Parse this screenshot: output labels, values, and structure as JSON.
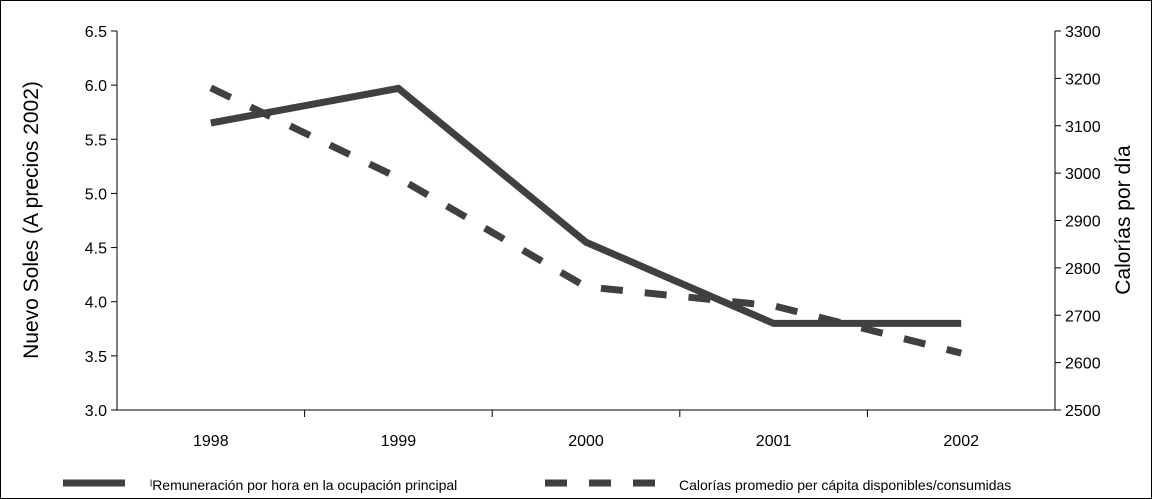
{
  "chart_data": {
    "type": "line",
    "categories": [
      "1998",
      "1999",
      "2000",
      "2001",
      "2002"
    ],
    "ylabel": "Nuevo Soles (A precios 2002)",
    "y2label": "Calorías por día",
    "ylim": [
      3.0,
      6.5
    ],
    "y2lim": [
      2500,
      3300
    ],
    "yticks": [
      "3.0",
      "3.5",
      "4.0",
      "4.5",
      "5.0",
      "5.5",
      "6.0",
      "6.5"
    ],
    "y2ticks": [
      "2500",
      "2600",
      "2700",
      "2800",
      "2900",
      "3000",
      "3100",
      "3200",
      "3300"
    ],
    "series": [
      {
        "name": "ˡRemuneración por hora en la ocupación principal",
        "axis": "left",
        "style": "solid",
        "color": "#404040",
        "values": [
          5.65,
          5.97,
          4.55,
          3.8,
          3.8
        ]
      },
      {
        "name": "Calorías promedio per cápita disponibles/consumidas",
        "axis": "right",
        "style": "dashed",
        "color": "#404040",
        "values": [
          3180,
          2990,
          2760,
          2720,
          2620
        ]
      }
    ],
    "grid": false,
    "legend_position": "bottom"
  }
}
